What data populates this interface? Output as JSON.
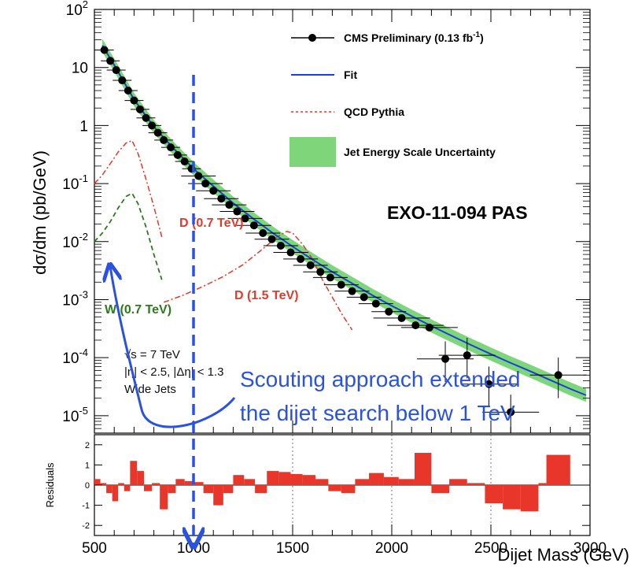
{
  "chart_data": [
    {
      "type": "scatter",
      "ylabel": "dσ/dm (pb/GeV)",
      "xlim": [
        500,
        3000
      ],
      "ylim": [
        5e-06,
        100
      ],
      "yscale": "log",
      "grid": false,
      "legend_position": "top-right",
      "y_ticks": [
        {
          "base": "10",
          "exp": "2"
        },
        {
          "base": "10",
          "exp": ""
        },
        {
          "base": "1",
          "exp": ""
        },
        {
          "base": "10",
          "exp": "-1"
        },
        {
          "base": "10",
          "exp": "-2"
        },
        {
          "base": "10",
          "exp": "-3"
        },
        {
          "base": "10",
          "exp": "-4"
        },
        {
          "base": "10",
          "exp": "-5"
        }
      ],
      "legend": [
        {
          "label": "CMS Preliminary (0.13 fb",
          "sup": "-1",
          "tail": ")",
          "marker": "point-with-line"
        },
        {
          "label": "Fit",
          "marker": "line",
          "color": "#1a3fd6"
        },
        {
          "label": "QCD Pythia",
          "marker": "dashed-line",
          "color": "#e03a2a"
        },
        {
          "label": "Jet Energy Scale Uncertainty",
          "marker": "box",
          "color": "#7fd67a"
        }
      ],
      "series": [
        {
          "name": "CMS Preliminary (0.13 fb-1)",
          "marker": "point",
          "color": "#000000",
          "x": [
            550,
            580,
            610,
            640,
            670,
            700,
            730,
            760,
            790,
            820,
            850,
            885,
            920,
            955,
            990,
            1025,
            1060,
            1100,
            1140,
            1180,
            1220,
            1260,
            1305,
            1350,
            1395,
            1440,
            1490,
            1540,
            1590,
            1640,
            1690,
            1745,
            1800,
            1860,
            1920,
            1985,
            2050,
            2120,
            2190,
            2270,
            2380,
            2490,
            2600,
            2840
          ],
          "y": [
            20,
            13,
            9,
            6,
            4,
            2.7,
            1.9,
            1.35,
            1.0,
            0.75,
            0.56,
            0.42,
            0.31,
            0.24,
            0.18,
            0.135,
            0.1,
            0.075,
            0.055,
            0.043,
            0.033,
            0.025,
            0.019,
            0.014,
            0.011,
            0.0085,
            0.0065,
            0.005,
            0.0039,
            0.003,
            0.0024,
            0.0018,
            0.0014,
            0.0011,
            0.00085,
            0.00062,
            0.00048,
            0.00036,
            0.00033,
            9.5e-05,
            0.00011,
            3.5e-05,
            1.15e-05,
            5e-05
          ]
        },
        {
          "name": "Fit",
          "marker": "line",
          "color": "#1a3fd6",
          "x": [
            540,
            600,
            700,
            800,
            900,
            1000,
            1100,
            1200,
            1300,
            1400,
            1500,
            1600,
            1700,
            1800,
            1900,
            2000,
            2100,
            2200,
            2300,
            2400,
            2500,
            2600,
            2700,
            2800,
            2900,
            2980
          ],
          "y": [
            24,
            11,
            2.8,
            0.95,
            0.4,
            0.18,
            0.09,
            0.046,
            0.025,
            0.014,
            0.0082,
            0.0049,
            0.003,
            0.0019,
            0.0012,
            0.00078,
            0.00052,
            0.00035,
            0.00024,
            0.000165,
            0.000115,
            8.1e-05,
            5.8e-05,
            4.1e-05,
            2.9e-05,
            2.25e-05
          ]
        },
        {
          "name": "D (0.7 TeV)",
          "marker": "dash-dot",
          "color": "#e03a2a",
          "x": [
            500,
            540,
            580,
            620,
            660,
            690,
            720,
            760,
            800,
            840
          ],
          "y": [
            0.1,
            0.14,
            0.22,
            0.35,
            0.5,
            0.55,
            0.33,
            0.12,
            0.04,
            0.012
          ]
        },
        {
          "name": "W (0.7 TeV)",
          "marker": "dashed",
          "color": "#2c7a1e",
          "x": [
            500,
            540,
            580,
            620,
            660,
            690,
            720,
            760,
            800,
            840
          ],
          "y": [
            0.01,
            0.014,
            0.022,
            0.038,
            0.06,
            0.068,
            0.045,
            0.018,
            0.006,
            0.0022
          ]
        },
        {
          "name": "D (1.5 TeV)",
          "marker": "dash-dot",
          "color": "#e03a2a",
          "x": [
            850,
            950,
            1050,
            1150,
            1250,
            1350,
            1420,
            1470,
            1500,
            1550,
            1600,
            1650,
            1700,
            1750,
            1800
          ],
          "y": [
            0.0009,
            0.0012,
            0.0017,
            0.0025,
            0.004,
            0.0075,
            0.012,
            0.015,
            0.014,
            0.009,
            0.005,
            0.0022,
            0.0011,
            0.00055,
            0.0003
          ]
        }
      ],
      "annotations": {
        "signal_d07": "D (0.7 TeV)",
        "signal_d15": "D (1.5 TeV)",
        "signal_w07": "W (0.7 TeV)",
        "energy": "√s = 7 TeV",
        "eta_cut": "|η| < 2.5, |Δη| < 1.3",
        "jets": "Wide Jets",
        "tag": "EXO-11-094 PAS",
        "callout_line1": "Scouting approach extended",
        "callout_line2": "the dijet search below 1 TeV",
        "threshold_x": 1000
      }
    },
    {
      "type": "bar",
      "ylabel": "Residuals",
      "xlabel": "Dijet Mass (GeV)",
      "xlim": [
        500,
        3000
      ],
      "ylim": [
        -2.5,
        2.5
      ],
      "x_ticks": [
        "500",
        "1000",
        "1500",
        "2000",
        "2500",
        "3000"
      ],
      "y_ticks": [
        "2",
        "1",
        "0",
        "-1",
        "-2"
      ],
      "color": "#e8372a",
      "bins": [
        {
          "x0": 500,
          "x1": 530,
          "v": 0.3
        },
        {
          "x0": 530,
          "x1": 560,
          "v": 0.1
        },
        {
          "x0": 560,
          "x1": 590,
          "v": -0.4
        },
        {
          "x0": 590,
          "x1": 620,
          "v": -0.8
        },
        {
          "x0": 620,
          "x1": 650,
          "v": 0.1
        },
        {
          "x0": 650,
          "x1": 680,
          "v": -0.3
        },
        {
          "x0": 680,
          "x1": 715,
          "v": 1.2
        },
        {
          "x0": 715,
          "x1": 750,
          "v": 0.7
        },
        {
          "x0": 750,
          "x1": 790,
          "v": -0.3
        },
        {
          "x0": 790,
          "x1": 830,
          "v": 0.1
        },
        {
          "x0": 830,
          "x1": 870,
          "v": -1.2
        },
        {
          "x0": 870,
          "x1": 910,
          "v": -0.4
        },
        {
          "x0": 910,
          "x1": 955,
          "v": 0.3
        },
        {
          "x0": 955,
          "x1": 1000,
          "v": 0.2
        },
        {
          "x0": 1000,
          "x1": 1050,
          "v": 0.15
        },
        {
          "x0": 1050,
          "x1": 1100,
          "v": -0.4
        },
        {
          "x0": 1100,
          "x1": 1150,
          "v": -1.0
        },
        {
          "x0": 1150,
          "x1": 1200,
          "v": -0.4
        },
        {
          "x0": 1200,
          "x1": 1255,
          "v": 0.5
        },
        {
          "x0": 1255,
          "x1": 1310,
          "v": 0.3
        },
        {
          "x0": 1310,
          "x1": 1370,
          "v": -0.4
        },
        {
          "x0": 1370,
          "x1": 1430,
          "v": 0.7
        },
        {
          "x0": 1430,
          "x1": 1490,
          "v": 0.65
        },
        {
          "x0": 1490,
          "x1": 1550,
          "v": 0.55
        },
        {
          "x0": 1550,
          "x1": 1615,
          "v": 0.5
        },
        {
          "x0": 1615,
          "x1": 1680,
          "v": 0.3
        },
        {
          "x0": 1680,
          "x1": 1745,
          "v": -0.3
        },
        {
          "x0": 1745,
          "x1": 1815,
          "v": -0.4
        },
        {
          "x0": 1815,
          "x1": 1885,
          "v": 0.3
        },
        {
          "x0": 1885,
          "x1": 1960,
          "v": 0.6
        },
        {
          "x0": 1960,
          "x1": 2035,
          "v": 0.4
        },
        {
          "x0": 2035,
          "x1": 2115,
          "v": 0.3
        },
        {
          "x0": 2115,
          "x1": 2200,
          "v": 1.6
        },
        {
          "x0": 2200,
          "x1": 2290,
          "v": -0.4
        },
        {
          "x0": 2290,
          "x1": 2380,
          "v": 0.3
        },
        {
          "x0": 2380,
          "x1": 2470,
          "v": 0.1
        },
        {
          "x0": 2470,
          "x1": 2560,
          "v": -0.9
        },
        {
          "x0": 2560,
          "x1": 2650,
          "v": -1.2
        },
        {
          "x0": 2650,
          "x1": 2740,
          "v": -1.3
        },
        {
          "x0": 2740,
          "x1": 2780,
          "v": 0.1
        },
        {
          "x0": 2780,
          "x1": 2900,
          "v": 1.5
        }
      ]
    }
  ]
}
